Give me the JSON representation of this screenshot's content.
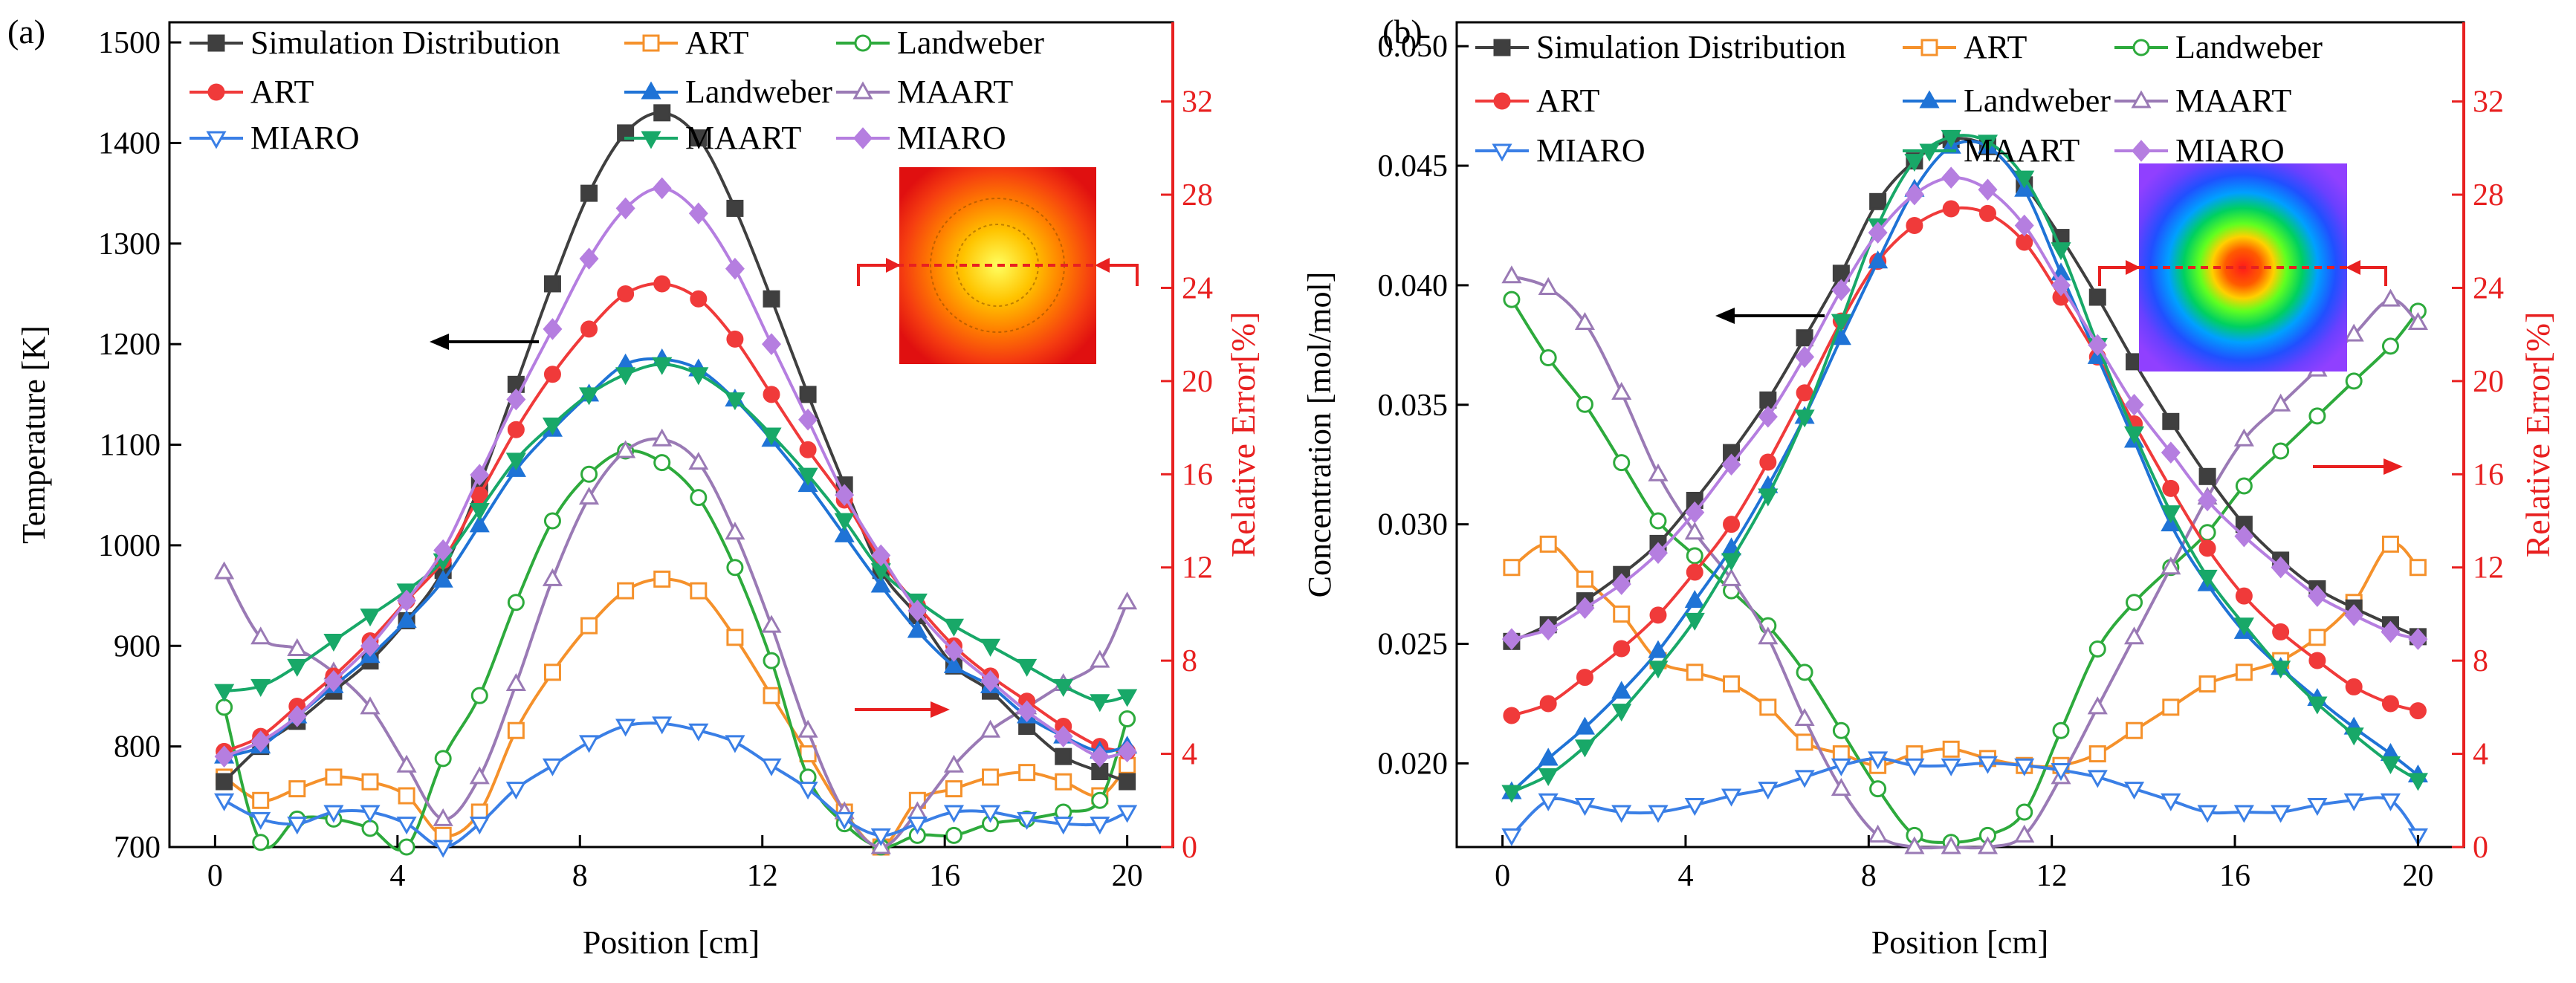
{
  "figure": {
    "panels": [
      "(a)",
      "(b)"
    ]
  },
  "colors": {
    "Simulation Distribution": "#3f3f3f",
    "ART": "#f03a3a",
    "Landweber": "#1f73d6",
    "MAART": "#18a868",
    "MIARO": "#b57ee0",
    "ART_err": "#f5912b",
    "Landweber_err": "#2daa3c",
    "MAART_err": "#9a7ab5",
    "MIARO_err": "#3a7fe6",
    "right_axis": "#e82020",
    "arrow_left": "#000000",
    "arrow_right": "#e82020"
  },
  "legend": {
    "entries": [
      {
        "label": "Simulation Distribution",
        "key": "Simulation Distribution",
        "marker": "square",
        "fill": true
      },
      {
        "label": "ART",
        "key": "ART_err",
        "marker": "square",
        "fill": false
      },
      {
        "label": "Landweber",
        "key": "Landweber_err",
        "marker": "circle",
        "fill": false
      },
      {
        "label": "ART",
        "key": "ART",
        "marker": "circle",
        "fill": true
      },
      {
        "label": "Landweber",
        "key": "Landweber",
        "marker": "triangle-up",
        "fill": true
      },
      {
        "label": "MAART",
        "key": "MAART_err",
        "marker": "triangle-up",
        "fill": false
      },
      {
        "label": "MIARO",
        "key": "MIARO_err",
        "marker": "triangle-down",
        "fill": false
      },
      {
        "label": "MAART",
        "key": "MAART",
        "marker": "triangle-down",
        "fill": true
      },
      {
        "label": "MIARO",
        "key": "MIARO",
        "marker": "diamond",
        "fill": true
      }
    ]
  },
  "chart_data": [
    {
      "panel": "(a)",
      "type": "line",
      "xlabel": "Position [cm]",
      "ylabel": "Temperature [K]",
      "y2label": "Relative Error[%]",
      "xlim": [
        -1,
        21
      ],
      "ylim": [
        700,
        1520
      ],
      "y2lim": [
        0,
        35.4
      ],
      "xticks": [
        "0",
        "4",
        "8",
        "12",
        "16",
        "20"
      ],
      "yticks": [
        "700",
        "800",
        "900",
        "1000",
        "1100",
        "1200",
        "1300",
        "1400",
        "1500"
      ],
      "y2ticks": [
        "0",
        "4",
        "8",
        "12",
        "16",
        "20",
        "24",
        "28",
        "32"
      ],
      "x": [
        0.2,
        1.0,
        1.8,
        2.6,
        3.4,
        4.2,
        5.0,
        5.8,
        6.6,
        7.4,
        8.2,
        9.0,
        9.8,
        10.6,
        11.4,
        12.2,
        13.0,
        13.8,
        14.6,
        15.4,
        16.2,
        17.0,
        17.8,
        18.6,
        19.4,
        20.0
      ],
      "series": [
        {
          "name": "Simulation Distribution",
          "axis": "left",
          "values": [
            765,
            800,
            825,
            855,
            885,
            925,
            975,
            1060,
            1160,
            1260,
            1350,
            1410,
            1430,
            1405,
            1335,
            1245,
            1150,
            1060,
            975,
            930,
            880,
            855,
            820,
            790,
            775,
            765
          ]
        },
        {
          "name": "ART",
          "axis": "left",
          "values": [
            795,
            810,
            840,
            870,
            905,
            945,
            985,
            1050,
            1115,
            1170,
            1215,
            1250,
            1260,
            1245,
            1205,
            1150,
            1095,
            1045,
            985,
            940,
            900,
            870,
            845,
            820,
            800,
            795
          ]
        },
        {
          "name": "Landweber",
          "axis": "left",
          "values": [
            790,
            800,
            830,
            860,
            890,
            925,
            965,
            1020,
            1075,
            1115,
            1150,
            1180,
            1185,
            1175,
            1145,
            1105,
            1060,
            1010,
            960,
            915,
            880,
            860,
            830,
            810,
            795,
            800
          ]
        },
        {
          "name": "MAART",
          "axis": "left",
          "values": [
            855,
            860,
            880,
            905,
            930,
            955,
            985,
            1035,
            1085,
            1120,
            1150,
            1170,
            1180,
            1170,
            1145,
            1110,
            1070,
            1025,
            975,
            945,
            920,
            900,
            880,
            860,
            845,
            850
          ]
        },
        {
          "name": "MIARO",
          "axis": "left",
          "values": [
            790,
            805,
            830,
            865,
            900,
            945,
            995,
            1070,
            1145,
            1215,
            1285,
            1335,
            1355,
            1330,
            1275,
            1200,
            1125,
            1050,
            990,
            935,
            895,
            865,
            835,
            810,
            790,
            795
          ]
        },
        {
          "name": "ART err",
          "axis": "right",
          "values": [
            3.0,
            2.0,
            2.5,
            3.0,
            2.8,
            2.2,
            0.5,
            1.5,
            5.0,
            7.5,
            9.5,
            11.0,
            11.5,
            11.0,
            9.0,
            6.5,
            4.0,
            1.5,
            0.0,
            2.0,
            2.5,
            3.0,
            3.2,
            2.8,
            2.2,
            3.5
          ]
        },
        {
          "name": "Landweber err",
          "axis": "right",
          "values": [
            6.0,
            0.2,
            1.2,
            1.2,
            0.8,
            0.0,
            3.8,
            6.5,
            10.5,
            14.0,
            16.0,
            17.0,
            16.5,
            15.0,
            12.0,
            8.0,
            3.0,
            1.0,
            0.0,
            0.5,
            0.5,
            1.0,
            1.2,
            1.5,
            2.0,
            5.5
          ]
        },
        {
          "name": "MAART err",
          "axis": "right",
          "values": [
            11.8,
            9.0,
            8.5,
            7.5,
            6.0,
            3.5,
            1.2,
            3.0,
            7.0,
            11.5,
            15.0,
            17.0,
            17.5,
            16.5,
            13.5,
            9.5,
            5.0,
            1.5,
            0.0,
            1.5,
            3.5,
            5.0,
            6.0,
            7.0,
            8.0,
            10.5
          ]
        },
        {
          "name": "MIARO err",
          "axis": "right",
          "values": [
            2.0,
            1.2,
            1.0,
            1.5,
            1.5,
            1.0,
            0.0,
            1.0,
            2.5,
            3.5,
            4.5,
            5.2,
            5.3,
            5.0,
            4.5,
            3.5,
            2.5,
            1.2,
            0.5,
            1.0,
            1.5,
            1.5,
            1.2,
            1.0,
            1.0,
            1.5
          ]
        }
      ],
      "annotations": {
        "arrow_left_near": "Temperature",
        "arrow_right_near": "Relative Error"
      }
    },
    {
      "panel": "(b)",
      "type": "line",
      "xlabel": "Position [cm]",
      "ylabel": "Concentration [mol/mol]",
      "y2label": "Relative Error[%]",
      "xlim": [
        -1,
        21
      ],
      "ylim": [
        0.0165,
        0.051
      ],
      "y2lim": [
        0,
        35.4
      ],
      "xticks": [
        "0",
        "4",
        "8",
        "12",
        "16",
        "20"
      ],
      "yticks": [
        "0.020",
        "0.025",
        "0.030",
        "0.035",
        "0.040",
        "0.045",
        "0.050"
      ],
      "y2ticks": [
        "0",
        "4",
        "8",
        "12",
        "16",
        "20",
        "24",
        "28",
        "32"
      ],
      "x": [
        0.2,
        1.0,
        1.8,
        2.6,
        3.4,
        4.2,
        5.0,
        5.8,
        6.6,
        7.4,
        8.2,
        9.0,
        9.8,
        10.6,
        11.4,
        12.2,
        13.0,
        13.8,
        14.6,
        15.4,
        16.2,
        17.0,
        17.8,
        18.6,
        19.4,
        20.0
      ],
      "series": [
        {
          "name": "Simulation Distribution",
          "axis": "left",
          "values": [
            0.0251,
            0.0258,
            0.0268,
            0.0279,
            0.0292,
            0.031,
            0.033,
            0.0352,
            0.0378,
            0.0405,
            0.0435,
            0.0452,
            0.0461,
            0.0458,
            0.0442,
            0.042,
            0.0395,
            0.0368,
            0.0343,
            0.032,
            0.03,
            0.0285,
            0.0273,
            0.0265,
            0.0258,
            0.0253
          ]
        },
        {
          "name": "ART",
          "axis": "left",
          "values": [
            0.022,
            0.0225,
            0.0236,
            0.0248,
            0.0262,
            0.028,
            0.03,
            0.0326,
            0.0355,
            0.0385,
            0.041,
            0.0425,
            0.0432,
            0.043,
            0.0418,
            0.0395,
            0.037,
            0.0342,
            0.0315,
            0.029,
            0.027,
            0.0255,
            0.0243,
            0.0232,
            0.0225,
            0.0222
          ]
        },
        {
          "name": "Landweber",
          "axis": "left",
          "values": [
            0.0188,
            0.0202,
            0.0215,
            0.023,
            0.0247,
            0.0268,
            0.029,
            0.0316,
            0.0345,
            0.0378,
            0.041,
            0.044,
            0.0458,
            0.0458,
            0.044,
            0.0405,
            0.037,
            0.0335,
            0.03,
            0.0275,
            0.0255,
            0.024,
            0.0227,
            0.0215,
            0.0204,
            0.0195
          ]
        },
        {
          "name": "MAART",
          "axis": "left",
          "values": [
            0.0188,
            0.0195,
            0.0207,
            0.0222,
            0.024,
            0.026,
            0.0285,
            0.0312,
            0.0345,
            0.0385,
            0.0425,
            0.0452,
            0.0462,
            0.046,
            0.0445,
            0.0415,
            0.0375,
            0.0338,
            0.0305,
            0.0278,
            0.0258,
            0.024,
            0.0225,
            0.0212,
            0.02,
            0.0193
          ]
        },
        {
          "name": "MIARO",
          "axis": "left",
          "values": [
            0.0252,
            0.0256,
            0.0265,
            0.0275,
            0.0288,
            0.0305,
            0.0325,
            0.0345,
            0.037,
            0.0398,
            0.0422,
            0.0438,
            0.0445,
            0.044,
            0.0425,
            0.04,
            0.0375,
            0.035,
            0.033,
            0.031,
            0.0295,
            0.0282,
            0.027,
            0.0262,
            0.0255,
            0.0252
          ]
        },
        {
          "name": "ART err",
          "axis": "right",
          "values": [
            12.0,
            13.0,
            11.5,
            10.0,
            8.0,
            7.5,
            7.0,
            6.0,
            4.5,
            4.0,
            3.5,
            4.0,
            4.2,
            3.8,
            3.5,
            3.5,
            4.0,
            5.0,
            6.0,
            7.0,
            7.5,
            8.0,
            9.0,
            10.5,
            13.0,
            12.0
          ]
        },
        {
          "name": "Landweber err",
          "axis": "right",
          "values": [
            23.5,
            21.0,
            19.0,
            16.5,
            14.0,
            12.5,
            11.0,
            9.5,
            7.5,
            5.0,
            2.5,
            0.5,
            0.2,
            0.5,
            1.5,
            5.0,
            8.5,
            10.5,
            12.0,
            13.5,
            15.5,
            17.0,
            18.5,
            20.0,
            21.5,
            23.0
          ]
        },
        {
          "name": "MAART err",
          "axis": "right",
          "values": [
            24.5,
            24.0,
            22.5,
            19.5,
            16.0,
            13.5,
            11.5,
            9.0,
            5.5,
            2.5,
            0.5,
            0.0,
            0.0,
            0.0,
            0.5,
            3.0,
            6.0,
            9.0,
            12.0,
            15.0,
            17.5,
            19.0,
            20.5,
            22.0,
            23.5,
            22.5
          ]
        },
        {
          "name": "MIARO err",
          "axis": "right",
          "values": [
            0.5,
            2.0,
            1.8,
            1.5,
            1.5,
            1.8,
            2.2,
            2.5,
            3.0,
            3.5,
            3.8,
            3.5,
            3.5,
            3.6,
            3.5,
            3.3,
            3.0,
            2.5,
            2.0,
            1.5,
            1.5,
            1.5,
            1.8,
            2.0,
            2.0,
            0.5
          ]
        }
      ],
      "annotations": {
        "arrow_left_near": "Concentration",
        "arrow_right_near": "Relative Error"
      }
    }
  ]
}
